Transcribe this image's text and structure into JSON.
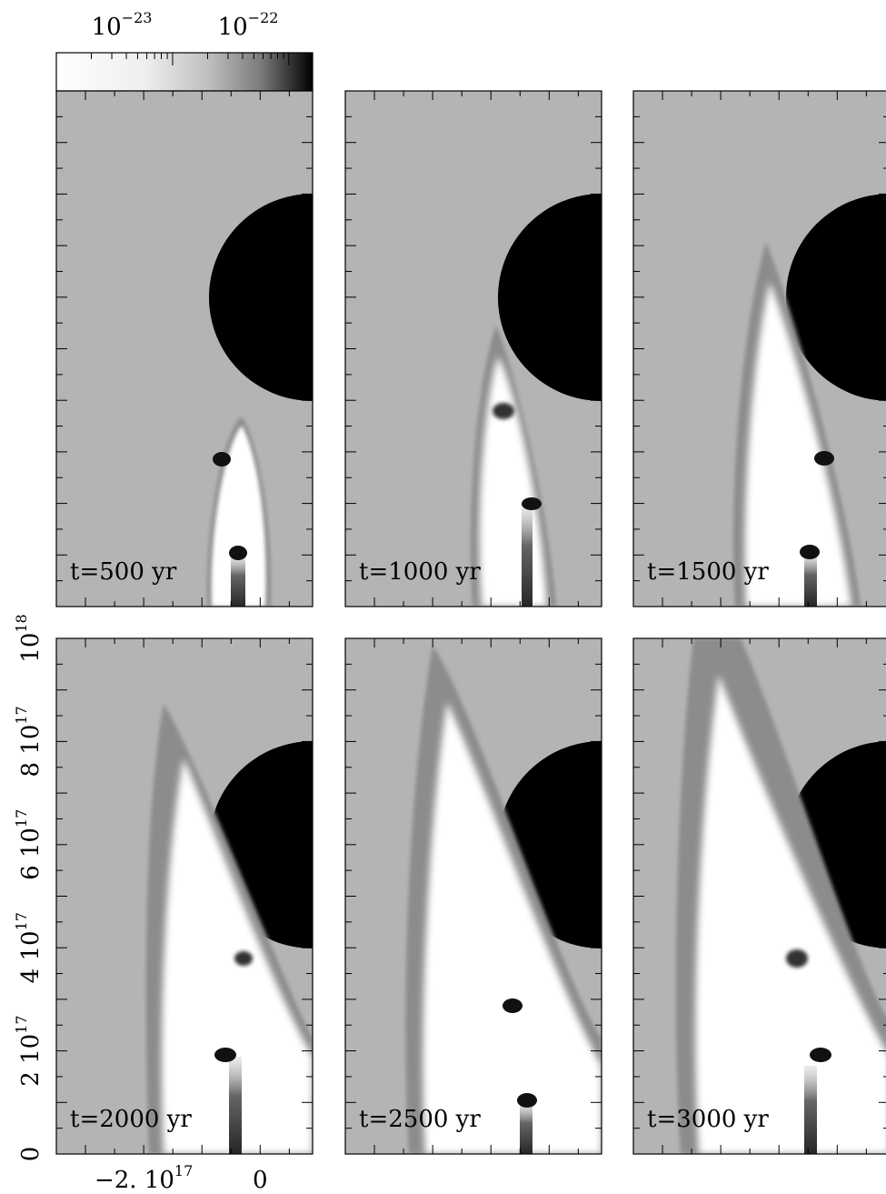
{
  "chart_data": {
    "type": "heatmap",
    "title": "",
    "colorbar": {
      "tick_labels": [
        {
          "base": "10",
          "exp": "−23",
          "value": 1e-23
        },
        {
          "base": "10",
          "exp": "−22",
          "value": 1e-22
        }
      ],
      "range": [
        1e-24,
        1.6e-22
      ],
      "scale": "log",
      "colormap": "grayscale, white (low) to black (high)"
    },
    "x_axis": {
      "range": [
        -3.5e+17,
        9e+16
      ],
      "tick_labels": [
        {
          "text": "−2. 10",
          "exp": "17",
          "value": -2e+17
        },
        {
          "text": "0",
          "exp": "",
          "value": 0
        }
      ]
    },
    "y_axis": {
      "range": [
        0,
        1e+18
      ],
      "tick_labels": [
        {
          "text": "0",
          "exp": "",
          "value": 0
        },
        {
          "text": "2 10",
          "exp": "17",
          "value": 2e+17
        },
        {
          "text": "4 10",
          "exp": "17",
          "value": 4e+17
        },
        {
          "text": "6 10",
          "exp": "17",
          "value": 6e+17
        },
        {
          "text": "8 10",
          "exp": "17",
          "value": 8e+17
        },
        {
          "text": "10",
          "exp": "18",
          "value": 1e+18
        }
      ]
    },
    "panels": [
      {
        "label": "t=500 yr",
        "time_yr": 500
      },
      {
        "label": "t=1000 yr",
        "time_yr": 1000
      },
      {
        "label": "t=1500 yr",
        "time_yr": 1500
      },
      {
        "label": "t=2000 yr",
        "time_yr": 2000
      },
      {
        "label": "t=2500 yr",
        "time_yr": 2500
      },
      {
        "label": "t=3000 yr",
        "time_yr": 3000
      }
    ]
  },
  "colors": {
    "ambient": "#b4b4b4",
    "cloud": "#000000",
    "cavity": "#ffffff",
    "shell": "#8c8c8c",
    "knot": "#111111"
  }
}
